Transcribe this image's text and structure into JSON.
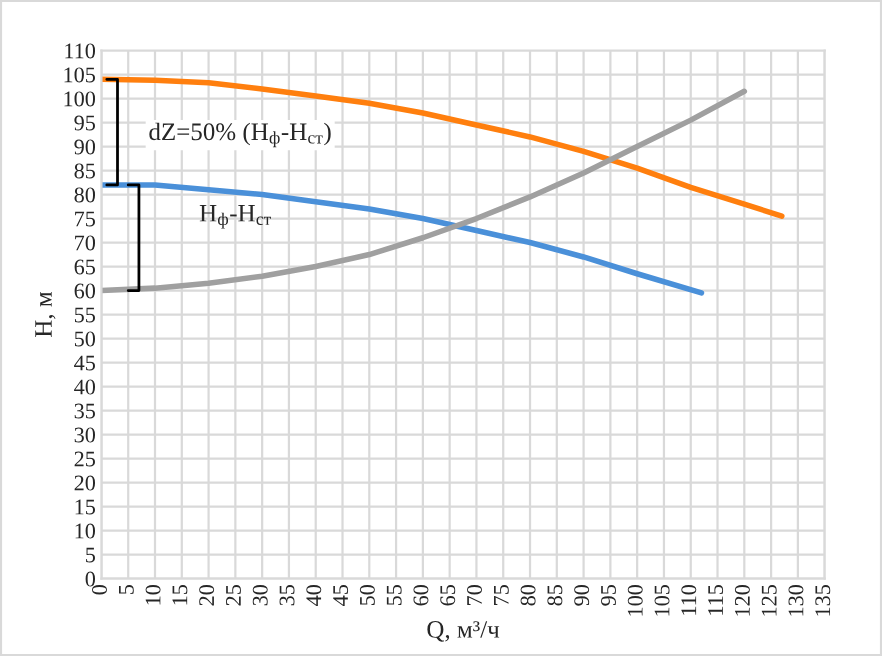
{
  "chart_data": {
    "type": "line",
    "xlabel": "Q, м³/ч",
    "ylabel": "H, м",
    "xlim": [
      0,
      135
    ],
    "xticks": [
      0,
      5,
      10,
      15,
      20,
      25,
      30,
      35,
      40,
      45,
      50,
      55,
      60,
      65,
      70,
      75,
      80,
      85,
      90,
      95,
      100,
      105,
      110,
      115,
      120,
      125,
      130,
      135
    ],
    "ylim": [
      0,
      110
    ],
    "yticks": [
      0,
      5,
      10,
      15,
      20,
      25,
      30,
      35,
      40,
      45,
      50,
      55,
      60,
      65,
      70,
      75,
      80,
      85,
      90,
      95,
      100,
      105,
      110
    ],
    "grid": true,
    "legend": false,
    "marker": "none",
    "line_style": "solid",
    "series": [
      {
        "color": "#ff7f0e",
        "x": [
          0,
          10,
          20,
          30,
          40,
          50,
          60,
          70,
          80,
          90,
          100,
          110,
          120,
          127
        ],
        "values": [
          104,
          103.8,
          103.3,
          102,
          100.5,
          99,
          97,
          94.5,
          92,
          89,
          85.5,
          81.5,
          78,
          75.5
        ]
      },
      {
        "color": "#4a90d9",
        "x": [
          0,
          10,
          20,
          30,
          40,
          50,
          60,
          70,
          80,
          90,
          100,
          112
        ],
        "values": [
          82,
          82,
          81,
          80,
          78.5,
          77,
          75,
          72.5,
          70,
          67,
          63.5,
          59.5
        ]
      },
      {
        "color": "#a0a0a0",
        "x": [
          0,
          10,
          20,
          30,
          40,
          50,
          60,
          70,
          80,
          90,
          100,
          110,
          120
        ],
        "values": [
          60,
          60.5,
          61.5,
          63,
          65,
          67.5,
          71,
          75,
          79.5,
          84.5,
          90,
          95.5,
          101.5
        ]
      }
    ],
    "annotations": [
      "dZ=50% (H$_{ф}$-H$_{ст}$)",
      "H$_{ф}$-H$_{ст}$"
    ]
  }
}
